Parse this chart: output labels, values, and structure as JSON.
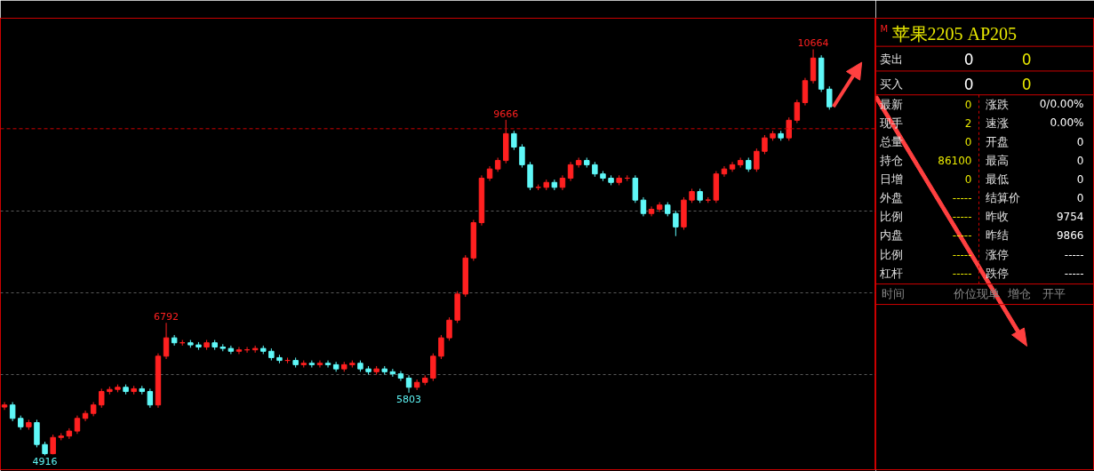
{
  "chart_data": [
    {
      "type": "candlestick",
      "categories": [
        null,
        null,
        null,
        null,
        null,
        null,
        null,
        null,
        null,
        null,
        null,
        null,
        null,
        null,
        null,
        null,
        null,
        null,
        null,
        null,
        null,
        null,
        null,
        null,
        null,
        null,
        null,
        null,
        null,
        null,
        null,
        null,
        null,
        null,
        null,
        null,
        null,
        null,
        null,
        null,
        null,
        null,
        null,
        null,
        null,
        null,
        null,
        null,
        null,
        null,
        null,
        null,
        null,
        null,
        null,
        null,
        null,
        null,
        null,
        null,
        null,
        null,
        null,
        null,
        null,
        null,
        null,
        null,
        null,
        null,
        null,
        null,
        null,
        null,
        null,
        null,
        null,
        null,
        null,
        null,
        null,
        null,
        null,
        null,
        null,
        null,
        null,
        null,
        null,
        null,
        null,
        null,
        null,
        null,
        null,
        null,
        null,
        null,
        null,
        null,
        null,
        null,
        null
      ],
      "ohlc": [
        [
          5600,
          5670,
          5560,
          5630
        ],
        [
          5630,
          5670,
          5400,
          5440
        ],
        [
          5440,
          5480,
          5280,
          5320
        ],
        [
          5320,
          5420,
          5280,
          5380
        ],
        [
          5380,
          5420,
          5030,
          5070
        ],
        [
          5070,
          5110,
          4916,
          4940
        ],
        [
          4940,
          5210,
          4930,
          5170
        ],
        [
          5170,
          5230,
          5130,
          5190
        ],
        [
          5190,
          5300,
          5150,
          5260
        ],
        [
          5260,
          5480,
          5220,
          5440
        ],
        [
          5440,
          5550,
          5400,
          5510
        ],
        [
          5510,
          5670,
          5470,
          5630
        ],
        [
          5630,
          5860,
          5590,
          5820
        ],
        [
          5820,
          5890,
          5780,
          5850
        ],
        [
          5850,
          5920,
          5810,
          5880
        ],
        [
          5880,
          5920,
          5780,
          5820
        ],
        [
          5820,
          5900,
          5780,
          5860
        ],
        [
          5860,
          5900,
          5780,
          5820
        ],
        [
          5820,
          5860,
          5590,
          5630
        ],
        [
          5630,
          6360,
          5590,
          6320
        ],
        [
          6320,
          6792,
          6280,
          6580
        ],
        [
          6580,
          6620,
          6470,
          6510
        ],
        [
          6510,
          6550,
          6470,
          6510
        ],
        [
          6510,
          6550,
          6440,
          6480
        ],
        [
          6480,
          6520,
          6410,
          6450
        ],
        [
          6450,
          6550,
          6410,
          6510
        ],
        [
          6510,
          6550,
          6410,
          6450
        ],
        [
          6450,
          6490,
          6390,
          6430
        ],
        [
          6430,
          6470,
          6350,
          6390
        ],
        [
          6390,
          6450,
          6350,
          6410
        ],
        [
          6410,
          6450,
          6370,
          6410
        ],
        [
          6410,
          6470,
          6370,
          6430
        ],
        [
          6430,
          6470,
          6350,
          6390
        ],
        [
          6390,
          6430,
          6260,
          6300
        ],
        [
          6300,
          6340,
          6220,
          6260
        ],
        [
          6260,
          6300,
          6220,
          6260
        ],
        [
          6260,
          6300,
          6160,
          6200
        ],
        [
          6200,
          6260,
          6160,
          6220
        ],
        [
          6220,
          6260,
          6160,
          6200
        ],
        [
          6200,
          6260,
          6160,
          6220
        ],
        [
          6220,
          6260,
          6160,
          6200
        ],
        [
          6200,
          6240,
          6100,
          6140
        ],
        [
          6140,
          6240,
          6100,
          6200
        ],
        [
          6200,
          6260,
          6160,
          6220
        ],
        [
          6220,
          6260,
          6100,
          6140
        ],
        [
          6140,
          6180,
          6060,
          6100
        ],
        [
          6100,
          6180,
          6060,
          6140
        ],
        [
          6140,
          6180,
          6060,
          6100
        ],
        [
          6100,
          6140,
          6030,
          6070
        ],
        [
          6070,
          6110,
          5970,
          6010
        ],
        [
          6010,
          6050,
          5803,
          5880
        ],
        [
          5880,
          5990,
          5840,
          5950
        ],
        [
          5950,
          6050,
          5910,
          6010
        ],
        [
          6010,
          6360,
          5970,
          6320
        ],
        [
          6320,
          6620,
          6280,
          6580
        ],
        [
          6580,
          6870,
          6540,
          6830
        ],
        [
          6830,
          7240,
          6790,
          7200
        ],
        [
          7200,
          7750,
          7160,
          7710
        ],
        [
          7710,
          8250,
          7670,
          8210
        ],
        [
          8210,
          8880,
          8170,
          8840
        ],
        [
          8840,
          9010,
          8800,
          8970
        ],
        [
          8970,
          9130,
          8930,
          9090
        ],
        [
          9090,
          9666,
          9050,
          9470
        ],
        [
          9470,
          9510,
          9240,
          9280
        ],
        [
          9280,
          9320,
          8990,
          9030
        ],
        [
          9030,
          9070,
          8670,
          8710
        ],
        [
          8710,
          8750,
          8670,
          8710
        ],
        [
          8710,
          8820,
          8670,
          8780
        ],
        [
          8780,
          8820,
          8670,
          8710
        ],
        [
          8710,
          8880,
          8670,
          8840
        ],
        [
          8840,
          9070,
          8800,
          9030
        ],
        [
          9030,
          9130,
          8990,
          9090
        ],
        [
          9090,
          9130,
          8990,
          9030
        ],
        [
          9030,
          9070,
          8860,
          8900
        ],
        [
          8900,
          8940,
          8800,
          8840
        ],
        [
          8840,
          8880,
          8740,
          8780
        ],
        [
          8780,
          8880,
          8740,
          8840
        ],
        [
          8840,
          8880,
          8800,
          8840
        ],
        [
          8840,
          8880,
          8490,
          8530
        ],
        [
          8530,
          8570,
          8300,
          8340
        ],
        [
          8340,
          8440,
          8300,
          8400
        ],
        [
          8400,
          8500,
          8360,
          8460
        ],
        [
          8460,
          8500,
          8300,
          8340
        ],
        [
          8340,
          8380,
          8020,
          8150
        ],
        [
          8150,
          8570,
          8110,
          8530
        ],
        [
          8530,
          8690,
          8490,
          8650
        ],
        [
          8650,
          8690,
          8490,
          8530
        ],
        [
          8530,
          8570,
          8490,
          8530
        ],
        [
          8530,
          8940,
          8490,
          8900
        ],
        [
          8900,
          9010,
          8860,
          8970
        ],
        [
          8970,
          9070,
          8930,
          9030
        ],
        [
          9030,
          9130,
          8990,
          9090
        ],
        [
          9090,
          9130,
          8930,
          8970
        ],
        [
          8970,
          9260,
          8930,
          9220
        ],
        [
          9220,
          9450,
          9180,
          9410
        ],
        [
          9410,
          9510,
          9370,
          9470
        ],
        [
          9470,
          9510,
          9370,
          9410
        ],
        [
          9410,
          9700,
          9370,
          9660
        ],
        [
          9660,
          9950,
          9620,
          9910
        ],
        [
          9910,
          10260,
          9870,
          10220
        ],
        [
          10220,
          10664,
          10180,
          10540
        ],
        [
          10540,
          10580,
          10060,
          10100
        ],
        [
          10100,
          10140,
          9810,
          9850
        ]
      ],
      "ylim": [
        4714,
        11104
      ],
      "yticks": [
        {
          "value": 6060,
          "label": null
        },
        {
          "value": 7220,
          "label": null
        },
        {
          "value": 8370,
          "label": null
        }
      ],
      "grid": "y",
      "tick_labels": false,
      "ref_lines": [
        {
          "axis": "y",
          "value": 9540,
          "color": "#cc0000",
          "line_style": "dashed"
        }
      ],
      "annotations": [
        {
          "text": "10664",
          "y": 10664
        },
        {
          "text": "9666",
          "y": 9666
        },
        {
          "text": "6792",
          "y": 6792
        },
        {
          "text": "5803",
          "y": 5803
        },
        {
          "text": "4916",
          "y": 4916
        }
      ]
    },
    {
      "type": "other",
      "title": "苹果2205  AP205",
      "annotations": [
        "M",
        "卖出",
        "0",
        "0",
        "买入",
        "0",
        "0",
        "最新",
        "0",
        "涨跌",
        "0/0.00%",
        "现手",
        "2",
        "速涨",
        "0.00%",
        "总量",
        "0",
        "开盘",
        "0",
        "持仓",
        "86100",
        "最高",
        "0",
        "日增",
        "0",
        "最低",
        "0",
        "外盘",
        "-----",
        "结算价",
        "0",
        "比例",
        "-----",
        "昨收",
        "9754",
        "内盘",
        "-----",
        "昨结",
        "9866",
        "比例",
        "-----",
        "涨停",
        "-----",
        "杠杆",
        "-----",
        "跌停",
        "-----",
        "时间",
        "价位",
        "现单",
        "增仓",
        "开平"
      ]
    }
  ]
}
